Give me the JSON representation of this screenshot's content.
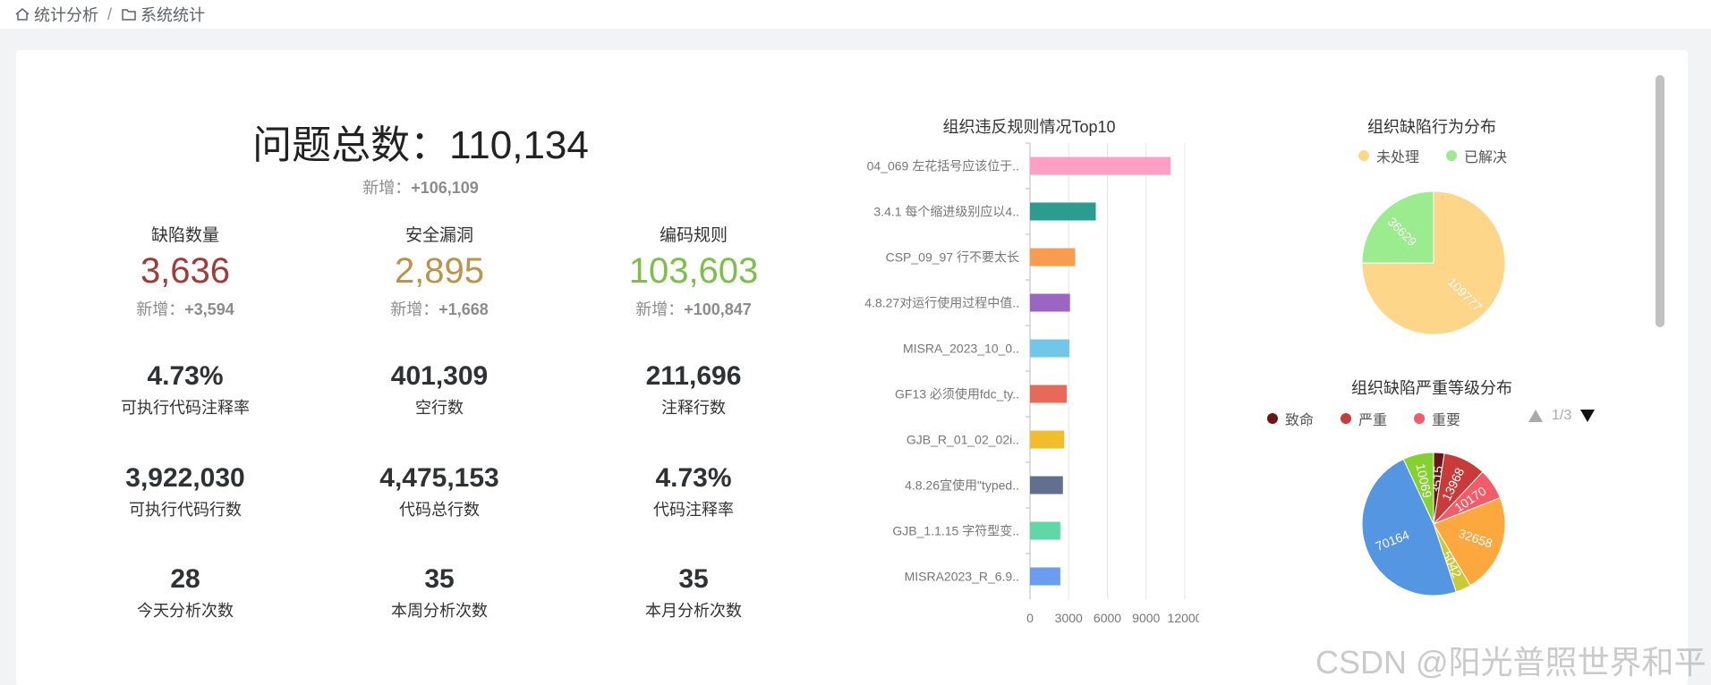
{
  "breadcrumb": {
    "item1": "统计分析",
    "sep": "/",
    "item2": "系统统计"
  },
  "summary": {
    "title": "问题总数：",
    "value": "110,134",
    "new_label": "新增：",
    "new_value": "+106,109"
  },
  "stats": [
    {
      "label": "缺陷数量",
      "value": "3,636",
      "new_label": "新增：",
      "new_value": "+3,594",
      "color": "#a33a3a"
    },
    {
      "label": "安全漏洞",
      "value": "2,895",
      "new_label": "新增：",
      "new_value": "+1,668",
      "color": "#b8954a"
    },
    {
      "label": "编码规则",
      "value": "103,603",
      "new_label": "新增：",
      "new_value": "+100,847",
      "color": "#7cc04a"
    }
  ],
  "metrics": [
    {
      "value": "4.73%",
      "label": "可执行代码注释率"
    },
    {
      "value": "401,309",
      "label": "空行数"
    },
    {
      "value": "211,696",
      "label": "注释行数"
    },
    {
      "value": "3,922,030",
      "label": "可执行代码行数"
    },
    {
      "value": "4,475,153",
      "label": "代码总行数"
    },
    {
      "value": "4.73%",
      "label": "代码注释率"
    },
    {
      "value": "28",
      "label": "今天分析次数"
    },
    {
      "value": "35",
      "label": "本周分析次数"
    },
    {
      "value": "35",
      "label": "本月分析次数"
    }
  ],
  "chart_data": [
    {
      "type": "bar",
      "orientation": "horizontal",
      "title": "组织违反规则情况Top10",
      "categories": [
        "04_069 左花括号应该位于..",
        "3.4.1 每个缩进级别应以4..",
        "CSP_09_97 行不要太长",
        "4.8.27对运行使用过程中值..",
        "MISRA_2023_10_0..",
        "GF13 必须使用fdc_ty..",
        "GJB_R_01_02_02i..",
        "4.8.26宜使用\"typed..",
        "GJB_1.1.15 字符型变..",
        "MISRA2023_R_6.9.."
      ],
      "values": [
        10900,
        5100,
        3500,
        3100,
        3050,
        2850,
        2650,
        2550,
        2350,
        2350
      ],
      "colors": [
        "#ff9fc6",
        "#2a9d8f",
        "#f89d4f",
        "#9a66c1",
        "#70c7ea",
        "#e8695a",
        "#f2bd2a",
        "#62708f",
        "#5fd7a7",
        "#6a9cf2"
      ],
      "xlim": [
        0,
        12000
      ],
      "xticks": [
        "0",
        "3000",
        "6000",
        "9000",
        "12000"
      ],
      "grid": true
    },
    {
      "type": "pie",
      "title": "组织缺陷行为分布",
      "labels": [
        "未处理",
        "已解决"
      ],
      "values": [
        109777,
        36629
      ],
      "colors": [
        "#fdd68a",
        "#9aec8e"
      ],
      "legend": "top"
    },
    {
      "type": "pie",
      "title": "组织缺陷严重等级分布",
      "legend_labels": [
        "致命",
        "严重",
        "重要"
      ],
      "legend_colors": [
        "#6b1515",
        "#c93a3a",
        "#f45b69"
      ],
      "legend_page": "1/3",
      "values": [
        3515,
        13968,
        10170,
        32658,
        5042,
        70164,
        10069
      ],
      "colors": [
        "#6b1515",
        "#c93a3a",
        "#f45b69",
        "#fca83f",
        "#c9c93a",
        "#5596e3",
        "#84d12f"
      ],
      "legend": "top"
    }
  ],
  "watermark": "CSDN @阳光普照世界和平"
}
